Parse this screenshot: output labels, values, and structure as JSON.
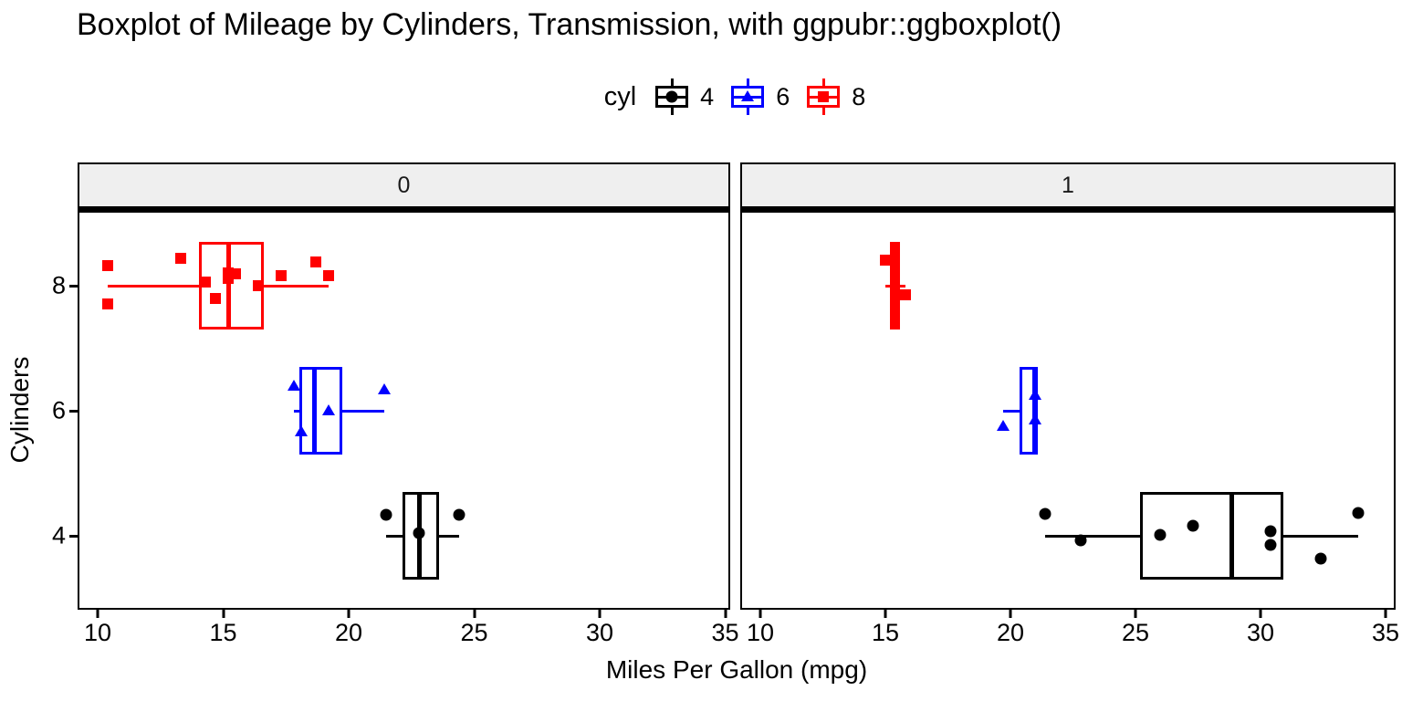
{
  "title": "Boxplot of Mileage by Cylinders, Transmission, with ggpubr::ggboxplot()",
  "legend": {
    "title": "cyl",
    "items": [
      {
        "label": "4",
        "color": "#000000",
        "marker": "circle"
      },
      {
        "label": "6",
        "color": "#0000FF",
        "marker": "triangle"
      },
      {
        "label": "8",
        "color": "#FF0000",
        "marker": "square"
      }
    ]
  },
  "axes": {
    "x_label": "Miles Per Gallon (mpg)",
    "y_label": "Cylinders",
    "x_ticks": [
      "10",
      "15",
      "20",
      "25",
      "30",
      "35"
    ],
    "y_ticks": [
      "8",
      "6",
      "4"
    ]
  },
  "facet_labels": [
    "0",
    "1"
  ],
  "chart_data": {
    "type": "boxplot",
    "orientation": "horizontal",
    "title": "Boxplot of Mileage by Cylinders, Transmission, with ggpubr::ggboxplot()",
    "xlabel": "Miles Per Gallon (mpg)",
    "ylabel": "Cylinders",
    "xlim": [
      9.2,
      35.2
    ],
    "x_ticks": [
      10,
      15,
      20,
      25,
      30,
      35
    ],
    "y_categories": [
      "4",
      "6",
      "8"
    ],
    "legend_title": "cyl",
    "grid": "off",
    "legend_position": "top",
    "facet_labels": [
      "0",
      "1"
    ],
    "facets": [
      {
        "label": "0",
        "groups": [
          {
            "cyl": "8",
            "color": "#FF0000",
            "marker": "square",
            "whisker_min": 10.4,
            "q1": 14.05,
            "median": 15.2,
            "q3": 16.62,
            "whisker_max": 19.2,
            "points": [
              [
                10.4,
                -22
              ],
              [
                10.4,
                20
              ],
              [
                13.3,
                -30
              ],
              [
                14.3,
                -4
              ],
              [
                14.7,
                14
              ],
              [
                15.2,
                -14
              ],
              [
                15.2,
                -8
              ],
              [
                15.5,
                -13
              ],
              [
                16.4,
                0
              ],
              [
                17.3,
                -11
              ],
              [
                18.7,
                -26
              ],
              [
                19.2,
                -11
              ]
            ]
          },
          {
            "cyl": "6",
            "color": "#0000FF",
            "marker": "triangle",
            "whisker_min": 17.8,
            "q1": 18.03,
            "median": 18.65,
            "q3": 19.75,
            "whisker_max": 21.4,
            "points": [
              [
                17.8,
                -27
              ],
              [
                18.1,
                23
              ],
              [
                19.2,
                0
              ],
              [
                21.4,
                -23
              ]
            ]
          },
          {
            "cyl": "4",
            "color": "#000000",
            "marker": "circle",
            "whisker_min": 21.5,
            "q1": 22.15,
            "median": 22.8,
            "q3": 23.6,
            "whisker_max": 24.4,
            "points": [
              [
                21.5,
                -23
              ],
              [
                22.8,
                -3
              ],
              [
                24.4,
                -23
              ]
            ]
          }
        ]
      },
      {
        "label": "1",
        "groups": [
          {
            "cyl": "8",
            "color": "#FF0000",
            "marker": "square",
            "whisker_min": 15.0,
            "q1": 15.2,
            "median": 15.4,
            "q3": 15.6,
            "whisker_max": 15.8,
            "points": [
              [
                15.0,
                -28
              ],
              [
                15.8,
                10
              ]
            ]
          },
          {
            "cyl": "6",
            "color": "#0000FF",
            "marker": "triangle",
            "whisker_min": 19.7,
            "q1": 20.35,
            "median": 21.0,
            "q3": 21.0,
            "whisker_max": 21.0,
            "points": [
              [
                19.7,
                17
              ],
              [
                21.0,
                -17
              ],
              [
                21.0,
                10
              ]
            ]
          },
          {
            "cyl": "4",
            "color": "#000000",
            "marker": "circle",
            "whisker_min": 21.4,
            "q1": 25.2,
            "median": 28.85,
            "q3": 30.9,
            "whisker_max": 33.9,
            "points": [
              [
                21.4,
                -24
              ],
              [
                22.8,
                5
              ],
              [
                26.0,
                -1
              ],
              [
                27.3,
                -11
              ],
              [
                30.4,
                -5
              ],
              [
                30.4,
                10
              ],
              [
                32.4,
                25
              ],
              [
                33.9,
                -25
              ]
            ]
          }
        ]
      }
    ]
  }
}
